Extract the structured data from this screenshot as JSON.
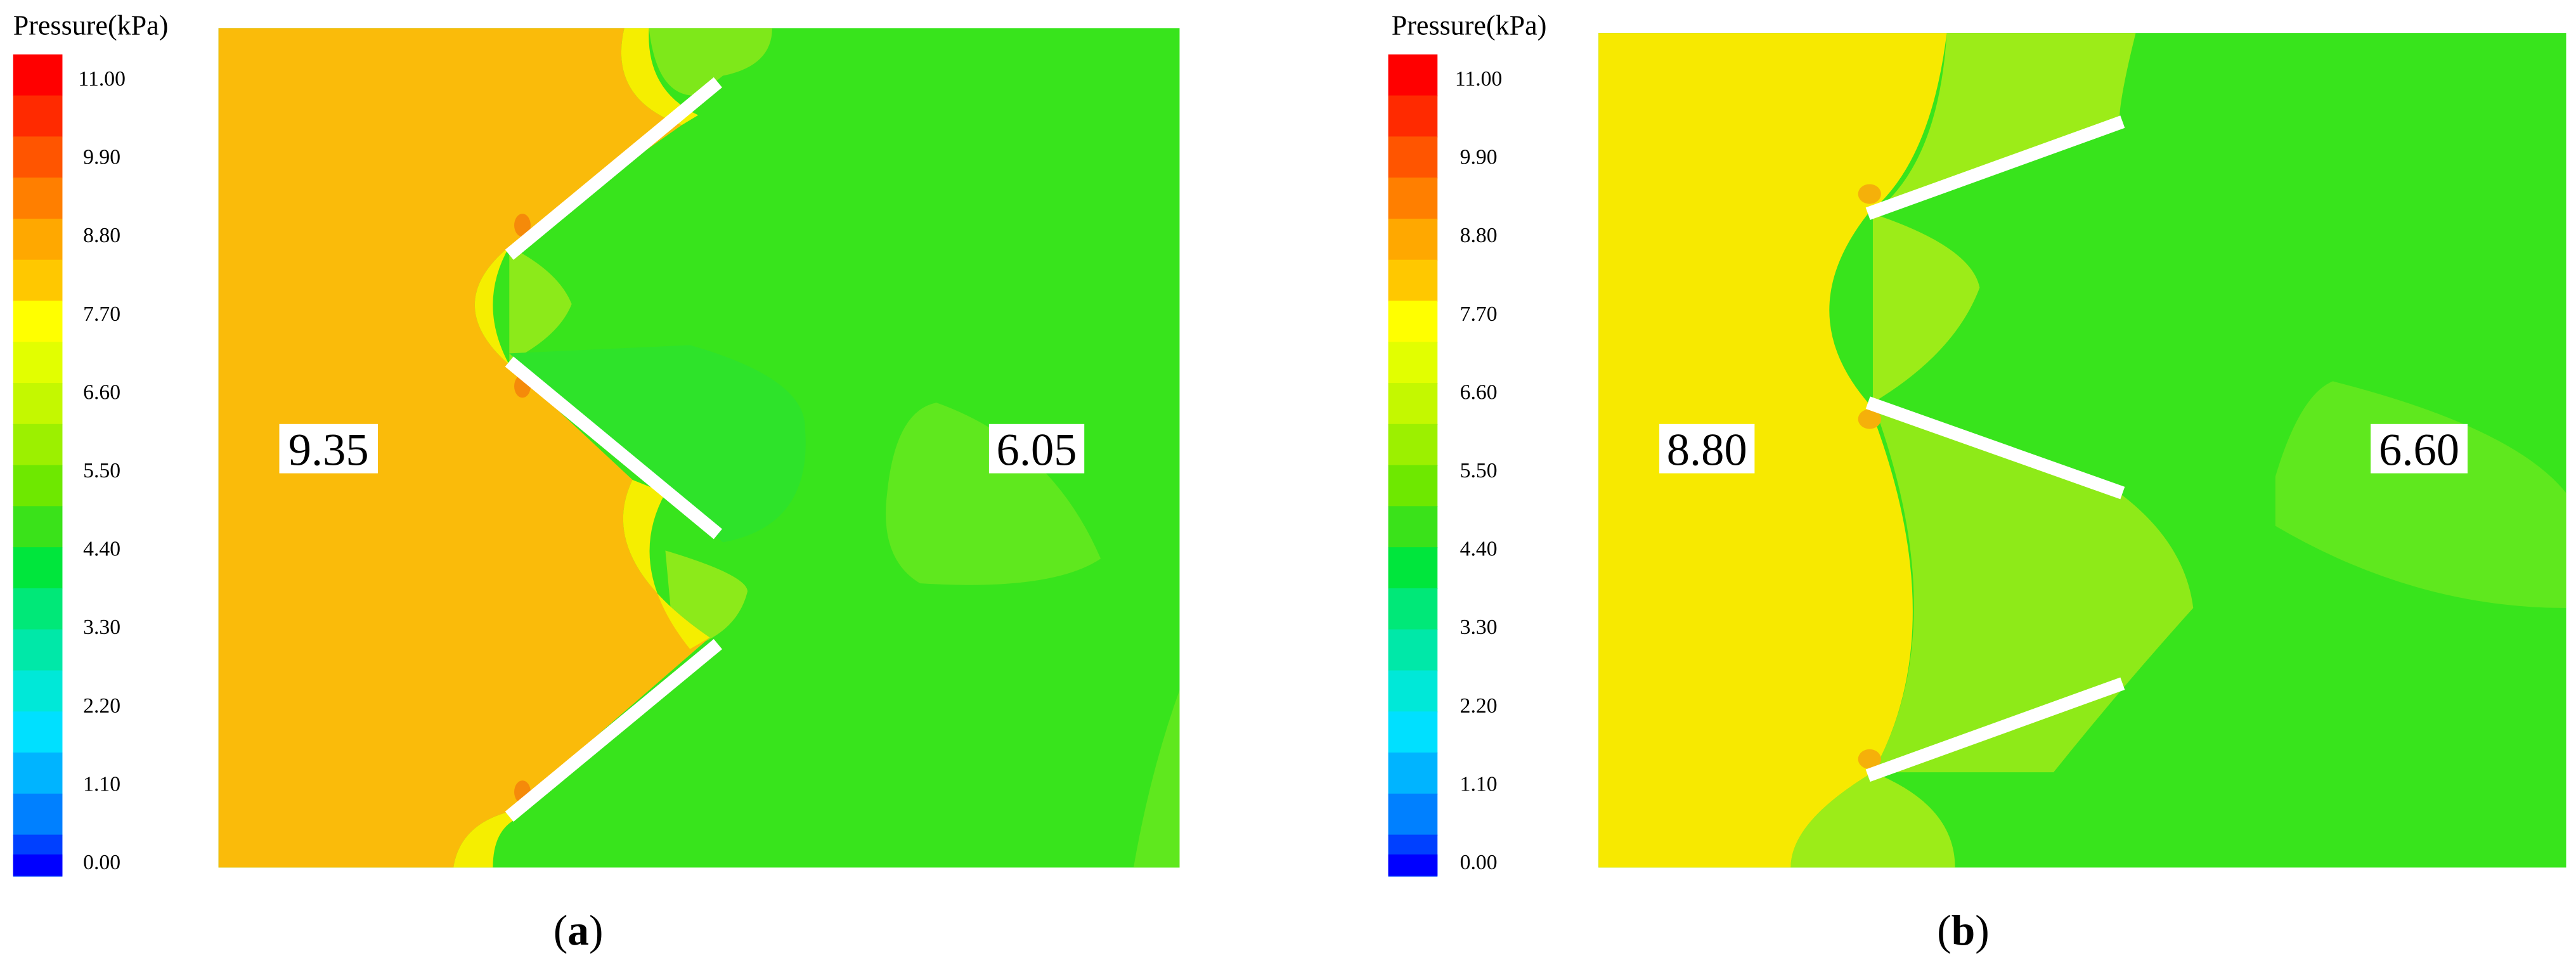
{
  "panels": [
    {
      "legend": {
        "title": "Pressure(kPa)",
        "ticks": [
          "11.00",
          "9.90",
          "8.80",
          "7.70",
          "6.60",
          "5.50",
          "4.40",
          "3.30",
          "2.20",
          "1.10",
          "0.00"
        ]
      },
      "annotations": [
        "9.35",
        "6.05"
      ],
      "caption": {
        "open": "(",
        "letter": "a",
        "close": ")"
      }
    },
    {
      "legend": {
        "title": "Pressure(kPa)",
        "ticks": [
          "11.00",
          "9.90",
          "8.80",
          "7.70",
          "6.60",
          "5.50",
          "4.40",
          "3.30",
          "2.20",
          "1.10",
          "0.00"
        ]
      },
      "annotations": [
        "8.80",
        "6.60"
      ],
      "caption": {
        "open": "(",
        "letter": "b",
        "close": ")"
      }
    }
  ]
}
